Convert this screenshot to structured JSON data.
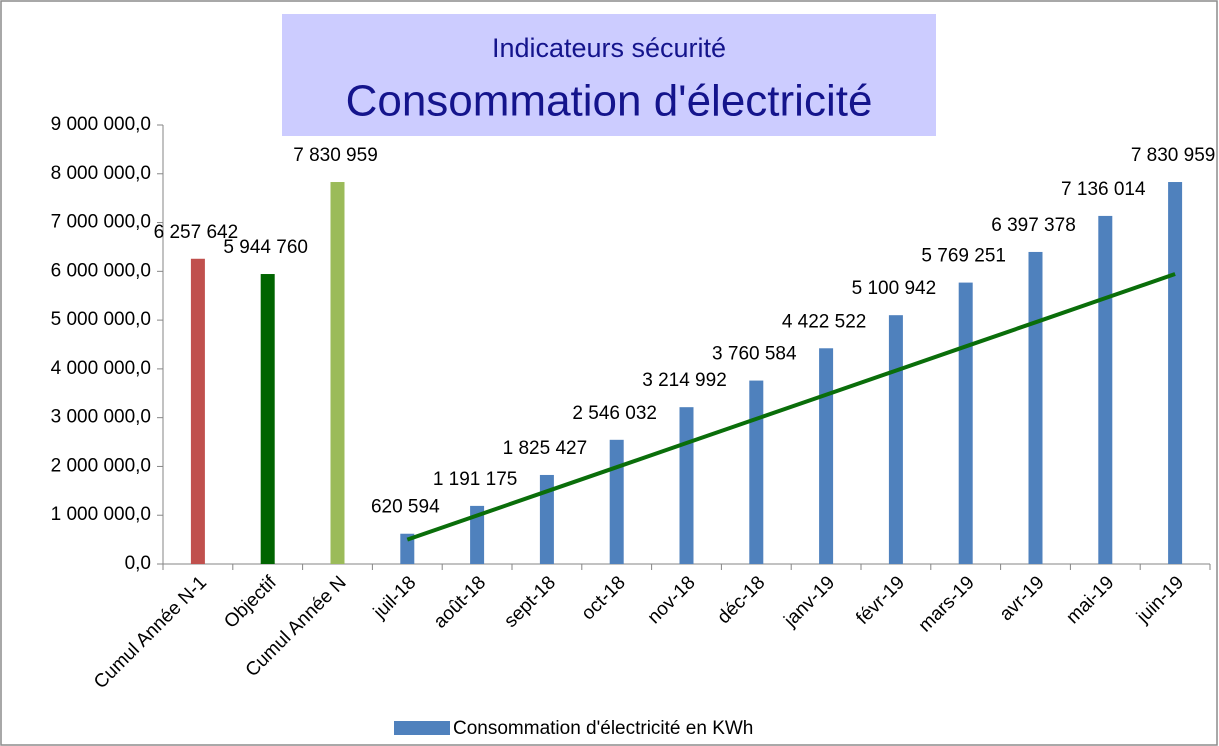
{
  "chart_data": {
    "type": "bar",
    "title": "Indicateurs sécurité",
    "subtitle": "Consommation d'électricité",
    "categories": [
      "Cumul Année N-1",
      "Objectif",
      "Cumul Année N",
      "juil-18",
      "août-18",
      "sept-18",
      "oct-18",
      "nov-18",
      "déc-18",
      "janv-19",
      "févr-19",
      "mars-19",
      "avr-19",
      "mai-19",
      "juin-19"
    ],
    "series": [
      {
        "name": "Consommation d'électricité en KWh",
        "color": "#4f81bd",
        "colors": [
          "#c0504d",
          "#006400",
          "#9bbb59",
          "#4f81bd",
          "#4f81bd",
          "#4f81bd",
          "#4f81bd",
          "#4f81bd",
          "#4f81bd",
          "#4f81bd",
          "#4f81bd",
          "#4f81bd",
          "#4f81bd",
          "#4f81bd",
          "#4f81bd"
        ],
        "values": [
          6257642,
          5944760,
          7830959,
          620594,
          1191175,
          1825427,
          2546032,
          3214992,
          3760584,
          4422522,
          5100942,
          5769251,
          6397378,
          7136014,
          7830959
        ],
        "value_labels": [
          "6 257 642",
          "5 944 760",
          "7 830 959",
          "620 594",
          "1 191 175",
          "1 825 427",
          "2 546 032",
          "3 214 992",
          "3 760 584",
          "4 422 522",
          "5 100 942",
          "5 769 251",
          "6 397 378",
          "7 136 014",
          "7 830 959"
        ]
      }
    ],
    "trendline": {
      "color": "#0a6e0a",
      "values": [
        null,
        null,
        null,
        500000,
        995000,
        1490000,
        1985000,
        2480000,
        2975000,
        3470000,
        3965000,
        4460000,
        4955000,
        5450000,
        5945000
      ]
    },
    "ylim": [
      0,
      9000000
    ],
    "yticks": [
      {
        "value": 0,
        "label": "0,0"
      },
      {
        "value": 1000000,
        "label": "1 000 000,0"
      },
      {
        "value": 2000000,
        "label": "2 000 000,0"
      },
      {
        "value": 3000000,
        "label": "3 000 000,0"
      },
      {
        "value": 4000000,
        "label": "4 000 000,0"
      },
      {
        "value": 5000000,
        "label": "5 000 000,0"
      },
      {
        "value": 6000000,
        "label": "6 000 000,0"
      },
      {
        "value": 7000000,
        "label": "7 000 000,0"
      },
      {
        "value": 8000000,
        "label": "8 000 000,0"
      },
      {
        "value": 9000000,
        "label": "9 000 000,0"
      }
    ],
    "grid": false,
    "legend": "bottom"
  }
}
